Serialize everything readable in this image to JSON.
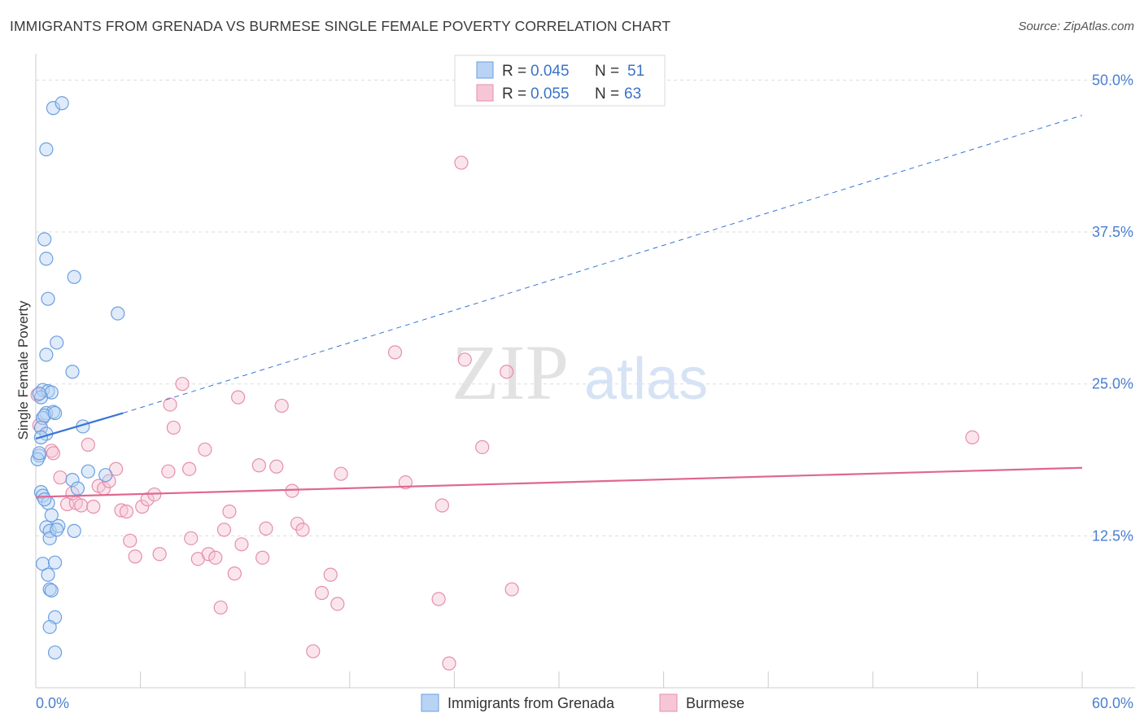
{
  "header": {
    "title": "IMMIGRANTS FROM GRENADA VS BURMESE SINGLE FEMALE POVERTY CORRELATION CHART",
    "source": "Source: ZipAtlas.com"
  },
  "watermark": {
    "zip": "ZIP",
    "atlas": "atlas"
  },
  "colors": {
    "series1_fill": "#b9d3f5",
    "series1_stroke": "#6b9fe0",
    "series1_line": "#3a76d2",
    "series2_fill": "#f7c6d6",
    "series2_stroke": "#e58fab",
    "series2_line": "#e06790",
    "grid": "#dddddd",
    "tick": "#4a7fd0"
  },
  "legend": {
    "rows": [
      {
        "r_label": "R = ",
        "r_value": "0.045",
        "n_label": "N = ",
        "n_value": "51"
      },
      {
        "r_label": "R = ",
        "r_value": "0.055",
        "n_label": "N = ",
        "n_value": "63"
      }
    ]
  },
  "chart_data": {
    "type": "scatter",
    "title": "IMMIGRANTS FROM GRENADA VS BURMESE SINGLE FEMALE POVERTY CORRELATION CHART",
    "xlabel": "",
    "ylabel": "Single Female Poverty",
    "xlim": [
      0,
      60
    ],
    "ylim": [
      0,
      51.5
    ],
    "x_tick_labels": [
      "0.0%",
      "60.0%"
    ],
    "y_ticks": [
      12.5,
      25.0,
      37.5,
      50.0
    ],
    "y_tick_labels": [
      "12.5%",
      "25.0%",
      "37.5%",
      "50.0%"
    ],
    "grid": true,
    "legend_placement": "top-center",
    "series": [
      {
        "name": "Immigrants from Grenada",
        "R": 0.045,
        "N": 51,
        "trend": {
          "solid": [
            [
              0,
              20.5
            ],
            [
              5.0,
              22.6
            ]
          ],
          "dashed": [
            [
              5.0,
              22.6
            ],
            [
              60.0,
              47.1
            ]
          ]
        },
        "points": [
          [
            1.0,
            47.7
          ],
          [
            1.5,
            48.1
          ],
          [
            0.6,
            44.3
          ],
          [
            0.5,
            36.9
          ],
          [
            0.6,
            35.3
          ],
          [
            2.2,
            33.8
          ],
          [
            0.7,
            32.0
          ],
          [
            4.7,
            30.8
          ],
          [
            1.2,
            28.4
          ],
          [
            0.6,
            27.4
          ],
          [
            2.1,
            26.0
          ],
          [
            0.4,
            24.5
          ],
          [
            0.7,
            24.4
          ],
          [
            0.9,
            24.3
          ],
          [
            0.3,
            23.9
          ],
          [
            0.6,
            22.6
          ],
          [
            1.0,
            22.7
          ],
          [
            0.4,
            22.2
          ],
          [
            0.3,
            21.4
          ],
          [
            2.7,
            21.5
          ],
          [
            0.6,
            20.9
          ],
          [
            0.2,
            19.1
          ],
          [
            0.1,
            18.8
          ],
          [
            2.1,
            17.1
          ],
          [
            3.0,
            17.8
          ],
          [
            2.4,
            16.4
          ],
          [
            4.0,
            17.5
          ],
          [
            0.3,
            16.1
          ],
          [
            0.4,
            15.8
          ],
          [
            0.7,
            15.2
          ],
          [
            0.9,
            14.2
          ],
          [
            0.6,
            13.2
          ],
          [
            0.8,
            12.9
          ],
          [
            1.3,
            13.3
          ],
          [
            2.2,
            12.9
          ],
          [
            0.8,
            12.3
          ],
          [
            0.4,
            10.2
          ],
          [
            1.1,
            10.3
          ],
          [
            0.7,
            9.3
          ],
          [
            0.8,
            8.1
          ],
          [
            0.9,
            8.0
          ],
          [
            1.1,
            5.8
          ],
          [
            0.8,
            5.0
          ],
          [
            1.1,
            2.9
          ],
          [
            0.2,
            24.2
          ],
          [
            0.5,
            22.4
          ],
          [
            1.1,
            22.6
          ],
          [
            0.3,
            20.6
          ],
          [
            0.2,
            19.3
          ],
          [
            0.5,
            15.5
          ],
          [
            1.2,
            13.0
          ]
        ]
      },
      {
        "name": "Burmese",
        "R": 0.055,
        "N": 63,
        "trend": {
          "solid": [
            [
              0,
              15.7
            ],
            [
              60.0,
              18.1
            ]
          ]
        },
        "points": [
          [
            0.1,
            24.1
          ],
          [
            0.2,
            21.6
          ],
          [
            0.9,
            19.5
          ],
          [
            1.0,
            19.3
          ],
          [
            1.4,
            17.3
          ],
          [
            1.8,
            15.1
          ],
          [
            2.3,
            15.2
          ],
          [
            2.1,
            16.0
          ],
          [
            2.6,
            15.0
          ],
          [
            3.0,
            20.0
          ],
          [
            3.3,
            14.9
          ],
          [
            3.6,
            16.6
          ],
          [
            3.9,
            16.4
          ],
          [
            4.2,
            17.0
          ],
          [
            4.6,
            18.0
          ],
          [
            4.9,
            14.6
          ],
          [
            5.2,
            14.5
          ],
          [
            5.4,
            12.1
          ],
          [
            5.7,
            10.8
          ],
          [
            6.1,
            14.9
          ],
          [
            6.4,
            15.5
          ],
          [
            6.8,
            15.9
          ],
          [
            7.1,
            11.0
          ],
          [
            7.6,
            17.8
          ],
          [
            7.7,
            23.3
          ],
          [
            7.9,
            21.4
          ],
          [
            8.4,
            25.0
          ],
          [
            8.8,
            18.0
          ],
          [
            8.9,
            12.3
          ],
          [
            9.3,
            10.6
          ],
          [
            9.7,
            19.6
          ],
          [
            9.9,
            11.0
          ],
          [
            10.3,
            10.7
          ],
          [
            10.6,
            6.6
          ],
          [
            10.8,
            13.0
          ],
          [
            11.1,
            14.5
          ],
          [
            11.4,
            9.4
          ],
          [
            11.6,
            23.9
          ],
          [
            11.8,
            11.8
          ],
          [
            12.8,
            18.3
          ],
          [
            13.0,
            10.7
          ],
          [
            13.2,
            13.1
          ],
          [
            13.8,
            18.2
          ],
          [
            14.1,
            23.2
          ],
          [
            14.7,
            16.2
          ],
          [
            15.0,
            13.5
          ],
          [
            15.3,
            13.0
          ],
          [
            15.9,
            3.0
          ],
          [
            16.4,
            7.8
          ],
          [
            16.9,
            9.3
          ],
          [
            17.3,
            6.9
          ],
          [
            17.5,
            17.6
          ],
          [
            20.6,
            27.6
          ],
          [
            21.2,
            16.9
          ],
          [
            23.1,
            7.3
          ],
          [
            23.3,
            15.0
          ],
          [
            23.7,
            2.0
          ],
          [
            24.4,
            43.2
          ],
          [
            24.6,
            27.0
          ],
          [
            25.6,
            19.8
          ],
          [
            27.0,
            26.0
          ],
          [
            27.3,
            8.1
          ],
          [
            53.7,
            20.6
          ]
        ]
      }
    ]
  },
  "bottom_legend": [
    "Immigrants from Grenada",
    "Burmese"
  ]
}
